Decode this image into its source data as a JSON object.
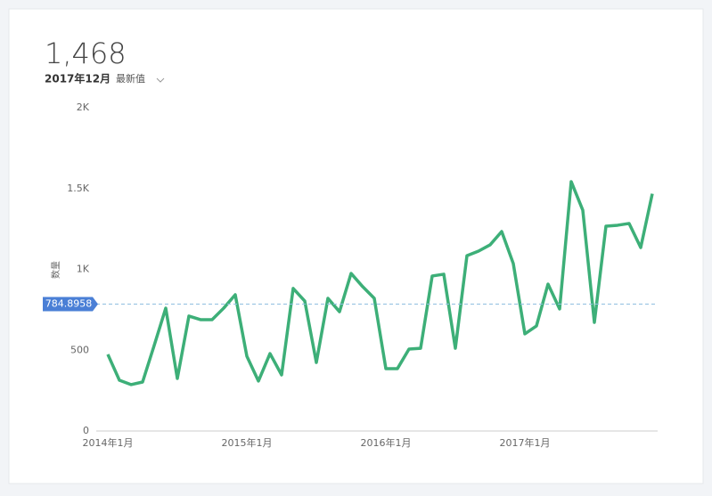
{
  "kpi": {
    "value": "1,468",
    "period": "2017年12月",
    "mode": "最新值"
  },
  "chart_data": {
    "type": "line",
    "y_label": "数量",
    "categories": [
      "2014年1月",
      null,
      null,
      null,
      null,
      null,
      null,
      null,
      null,
      null,
      null,
      null,
      "2015年1月",
      null,
      null,
      null,
      null,
      null,
      null,
      null,
      null,
      null,
      null,
      null,
      "2016年1月",
      null,
      null,
      null,
      null,
      null,
      null,
      null,
      null,
      null,
      null,
      null,
      "2017年1月",
      null,
      null,
      null,
      null,
      null,
      null,
      null,
      null,
      null,
      null,
      null
    ],
    "series": [
      {
        "name": "数量",
        "color": "#3daf78",
        "values": [
          474,
          314,
          287,
          303,
          529,
          760,
          325,
          711,
          689,
          689,
          760,
          843,
          463,
          309,
          479,
          347,
          882,
          804,
          424,
          821,
          738,
          975,
          893,
          821,
          386,
          386,
          507,
          512,
          959,
          970,
          512,
          1085,
          1113,
          1152,
          1234,
          1036,
          601,
          650,
          909,
          755,
          1543,
          1366,
          672,
          1267,
          1273,
          1284,
          1135,
          1468
        ]
      }
    ],
    "ylim": [
      0,
      2000
    ],
    "yticks": [
      0,
      500,
      {
        "value": 1000,
        "label": "1K"
      },
      {
        "value": 1500,
        "label": "1.5K"
      },
      {
        "value": 2000,
        "label": "2K"
      }
    ],
    "reference_line": {
      "value": 784.8958,
      "color": "#4a7fd6"
    }
  }
}
